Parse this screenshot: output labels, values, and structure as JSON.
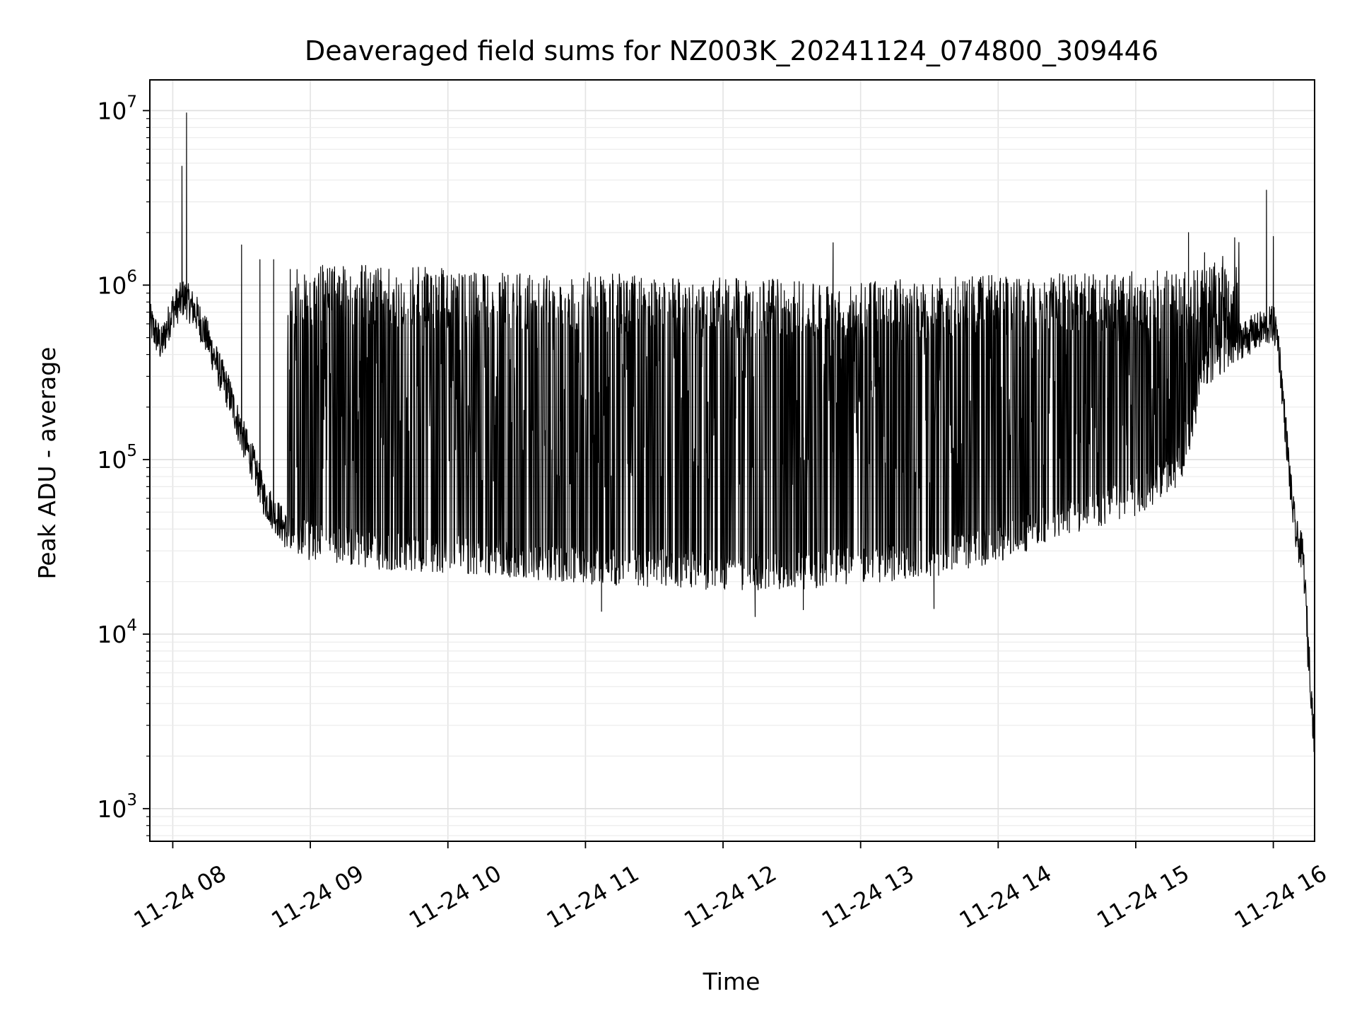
{
  "chart_data": {
    "type": "line",
    "title": "Deaveraged field sums for NZ003K_20241124_074800_309446",
    "xlabel": "Time",
    "ylabel": "Peak ADU - average",
    "yscale": "log",
    "ylim": [
      650,
      15000000
    ],
    "xlim": [
      "2024-11-24 07:50",
      "2024-11-24 16:18"
    ],
    "grid": true,
    "legend": "none",
    "x_ticks": [
      {
        "time": "2024-11-24 08:00",
        "label": "11-24 08"
      },
      {
        "time": "2024-11-24 09:00",
        "label": "11-24 09"
      },
      {
        "time": "2024-11-24 10:00",
        "label": "11-24 10"
      },
      {
        "time": "2024-11-24 11:00",
        "label": "11-24 11"
      },
      {
        "time": "2024-11-24 12:00",
        "label": "11-24 12"
      },
      {
        "time": "2024-11-24 13:00",
        "label": "11-24 13"
      },
      {
        "time": "2024-11-24 14:00",
        "label": "11-24 14"
      },
      {
        "time": "2024-11-24 15:00",
        "label": "11-24 15"
      },
      {
        "time": "2024-11-24 16:00",
        "label": "11-24 16"
      }
    ],
    "y_ticks": [
      {
        "value": 1000,
        "base": "10",
        "exp": "3"
      },
      {
        "value": 10000,
        "base": "10",
        "exp": "4"
      },
      {
        "value": 100000,
        "base": "10",
        "exp": "5"
      },
      {
        "value": 1000000,
        "base": "10",
        "exp": "6"
      },
      {
        "value": 10000000,
        "base": "10",
        "exp": "7"
      }
    ],
    "series": [
      {
        "color": "#000000",
        "baseline": [
          [
            "2024-11-24 07:50",
            620000
          ],
          [
            "2024-11-24 07:55",
            450000
          ],
          [
            "2024-11-24 08:00",
            720000
          ],
          [
            "2024-11-24 08:05",
            850000
          ],
          [
            "2024-11-24 08:10",
            700000
          ],
          [
            "2024-11-24 08:15",
            500000
          ],
          [
            "2024-11-24 08:20",
            330000
          ],
          [
            "2024-11-24 08:25",
            230000
          ],
          [
            "2024-11-24 08:30",
            140000
          ],
          [
            "2024-11-24 08:35",
            95000
          ],
          [
            "2024-11-24 08:40",
            60000
          ],
          [
            "2024-11-24 08:45",
            48000
          ],
          [
            "2024-11-24 08:50",
            38000
          ],
          [
            "2024-11-24 09:00",
            34000
          ],
          [
            "2024-11-24 09:30",
            30000
          ],
          [
            "2024-11-24 10:00",
            29000
          ],
          [
            "2024-11-24 10:30",
            27000
          ],
          [
            "2024-11-24 11:00",
            25000
          ],
          [
            "2024-11-24 11:30",
            24000
          ],
          [
            "2024-11-24 12:00",
            23000
          ],
          [
            "2024-11-24 12:30",
            23000
          ],
          [
            "2024-11-24 13:00",
            25000
          ],
          [
            "2024-11-24 13:30",
            27000
          ],
          [
            "2024-11-24 14:00",
            33000
          ],
          [
            "2024-11-24 14:30",
            47000
          ],
          [
            "2024-11-24 15:00",
            60000
          ],
          [
            "2024-11-24 15:20",
            95000
          ],
          [
            "2024-11-24 15:30",
            320000
          ],
          [
            "2024-11-24 15:45",
            480000
          ],
          [
            "2024-11-24 16:00",
            600000
          ],
          [
            "2024-11-24 16:02",
            500000
          ],
          [
            "2024-11-24 16:05",
            170000
          ],
          [
            "2024-11-24 16:08",
            60000
          ],
          [
            "2024-11-24 16:10",
            36000
          ],
          [
            "2024-11-24 16:13",
            28000
          ],
          [
            "2024-11-24 16:15",
            10000
          ],
          [
            "2024-11-24 16:18",
            2200
          ]
        ],
        "upper_envelope": [
          [
            "2024-11-24 08:50",
            1300000
          ],
          [
            "2024-11-24 09:30",
            1300000
          ],
          [
            "2024-11-24 10:00",
            1250000
          ],
          [
            "2024-11-24 11:00",
            1200000
          ],
          [
            "2024-11-24 12:00",
            1100000
          ],
          [
            "2024-11-24 13:00",
            1050000
          ],
          [
            "2024-11-24 14:00",
            1150000
          ],
          [
            "2024-11-24 15:00",
            1200000
          ],
          [
            "2024-11-24 15:45",
            1300000
          ]
        ],
        "spikes": [
          [
            "2024-11-24 08:04",
            4800000
          ],
          [
            "2024-11-24 08:06",
            9700000
          ],
          [
            "2024-11-24 08:30",
            1700000
          ],
          [
            "2024-11-24 08:38",
            1400000
          ],
          [
            "2024-11-24 08:44",
            1400000
          ],
          [
            "2024-11-24 12:48",
            1750000
          ],
          [
            "2024-11-24 15:23",
            2000000
          ],
          [
            "2024-11-24 15:57",
            3500000
          ],
          [
            "2024-11-24 16:00",
            1900000
          ]
        ],
        "dips": [
          [
            "2024-11-24 11:07",
            13500
          ],
          [
            "2024-11-24 12:14",
            12600
          ],
          [
            "2024-11-24 12:35",
            13800
          ],
          [
            "2024-11-24 13:32",
            14000
          ],
          [
            "2024-11-24 16:15",
            6500
          ]
        ]
      }
    ]
  }
}
